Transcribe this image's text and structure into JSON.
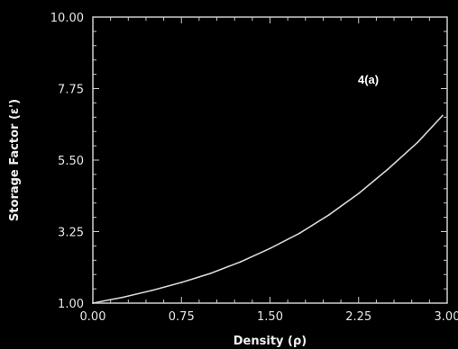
{
  "chart_data": {
    "type": "line",
    "xlabel": "Density (ρ)",
    "ylabel": "Storage Factor (ε')",
    "annotation": "4(a)",
    "xlim": [
      0,
      3
    ],
    "ylim": [
      1,
      10
    ],
    "x_ticks": [
      {
        "value": 0,
        "label": "0.00"
      },
      {
        "value": 0.75,
        "label": "0.75"
      },
      {
        "value": 1.5,
        "label": "1.50"
      },
      {
        "value": 2.25,
        "label": "2.25"
      },
      {
        "value": 3,
        "label": "3.00"
      }
    ],
    "y_ticks": [
      {
        "value": 1,
        "label": "1.00"
      },
      {
        "value": 3.25,
        "label": "3.25"
      },
      {
        "value": 5.5,
        "label": "5.50"
      },
      {
        "value": 7.75,
        "label": "7.75"
      },
      {
        "value": 10,
        "label": "10.00"
      }
    ],
    "grid": false,
    "series": [
      {
        "x": [
          0.0,
          0.25,
          0.5,
          0.75,
          1.0,
          1.25,
          1.5,
          1.75,
          2.0,
          2.25,
          2.5,
          2.75,
          2.96
        ],
        "y": [
          1.0,
          1.18,
          1.4,
          1.65,
          1.94,
          2.3,
          2.72,
          3.2,
          3.78,
          4.45,
          5.22,
          6.06,
          6.9
        ]
      }
    ],
    "colors": {
      "background": "#000000",
      "axis": "#cccccc",
      "line": "#d8d8d8",
      "text": "#e6e6e6"
    }
  }
}
